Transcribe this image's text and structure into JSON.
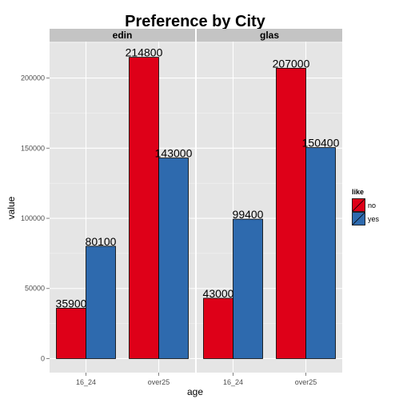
{
  "chart_data": {
    "type": "bar",
    "title": "Preference by City",
    "xlabel": "age",
    "ylabel": "value",
    "ylim": [
      -10000,
      226000
    ],
    "yticks": [
      0,
      50000,
      100000,
      150000,
      200000
    ],
    "ytick_labels": [
      "0",
      "50000",
      "100000",
      "150000",
      "200000"
    ],
    "categories": [
      "16_24",
      "over25"
    ],
    "grid": true,
    "legend": {
      "title": "like",
      "position": "right"
    },
    "series_colors": {
      "no": "#DE0018",
      "yes": "#2E6AAE"
    },
    "panels": [
      {
        "name": "edin",
        "series": [
          {
            "name": "no",
            "values": [
              35900,
              214800
            ]
          },
          {
            "name": "yes",
            "values": [
              80100,
              143000
            ]
          }
        ]
      },
      {
        "name": "glas",
        "series": [
          {
            "name": "no",
            "values": [
              43000,
              207000
            ]
          },
          {
            "name": "yes",
            "values": [
              99400,
              150400
            ]
          }
        ]
      }
    ]
  }
}
